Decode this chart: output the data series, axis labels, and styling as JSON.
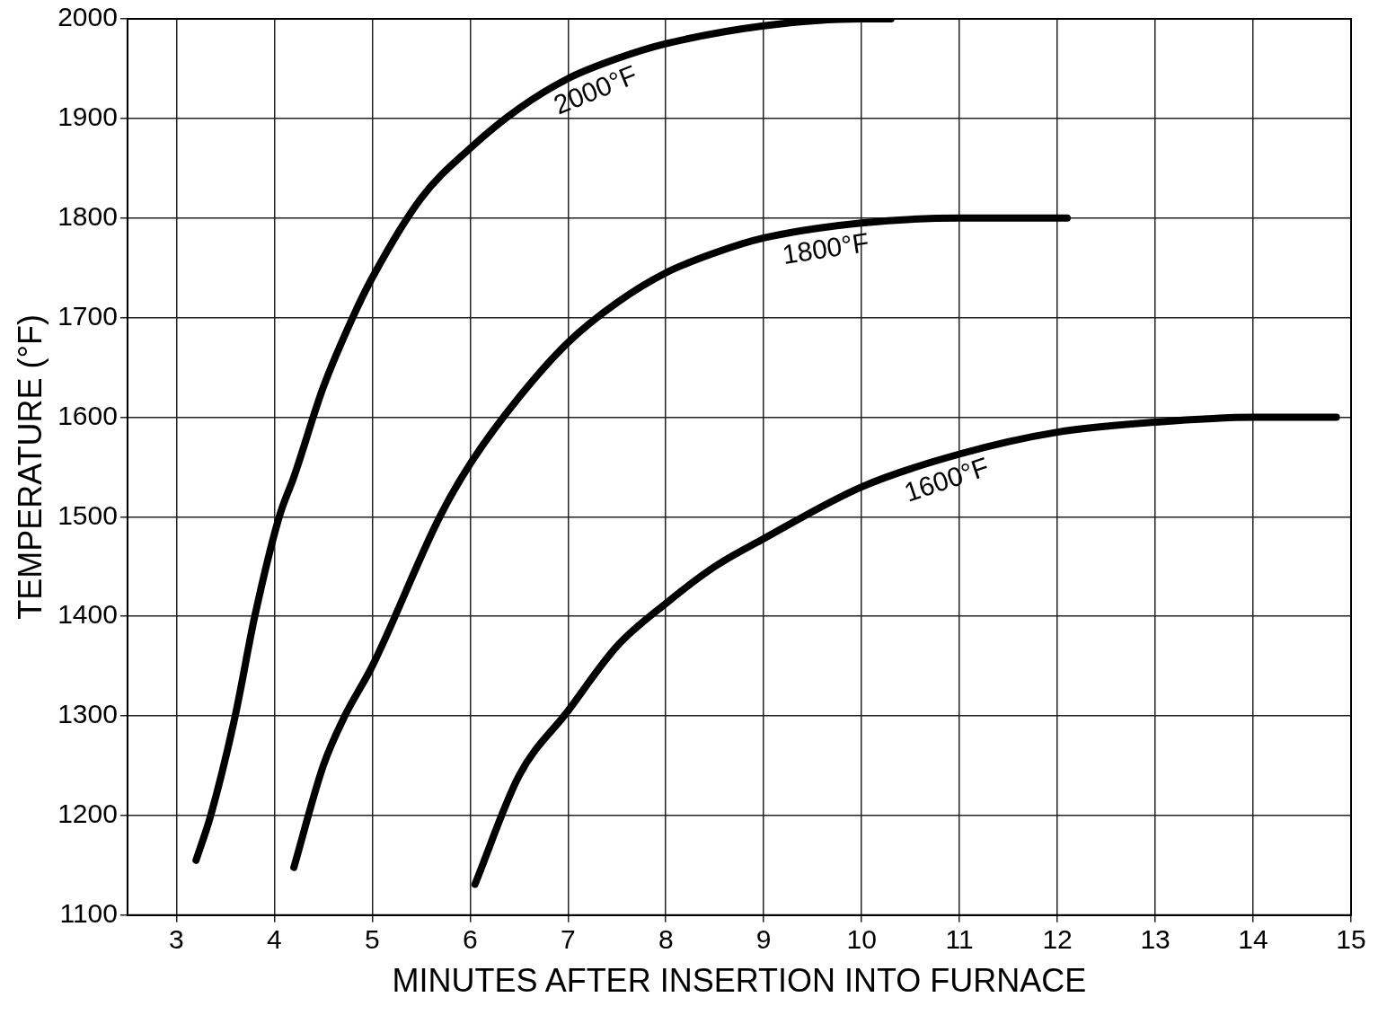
{
  "chart_data": {
    "type": "line",
    "xlabel": "MINUTES AFTER INSERTION INTO FURNACE",
    "ylabel": "TEMPERATURE (°F)",
    "xlim": [
      2.5,
      15
    ],
    "xticks": [
      3,
      4,
      5,
      6,
      7,
      8,
      9,
      10,
      11,
      12,
      13,
      14,
      15
    ],
    "ylim": [
      1100,
      2000
    ],
    "yticks": [
      1100,
      1200,
      1300,
      1400,
      1500,
      1600,
      1700,
      1800,
      1900,
      2000
    ],
    "grid": true,
    "marker": "none",
    "line_style": "solid",
    "series": [
      {
        "color": "#000000",
        "x": [
          3.2,
          3.35,
          3.6,
          3.8,
          4.05,
          4.2,
          4.5,
          4.8,
          5.0,
          5.5,
          6.0,
          6.5,
          7.0,
          7.5,
          8.0,
          9.0,
          10.0,
          10.3
        ],
        "values": [
          1155,
          1200,
          1300,
          1400,
          1500,
          1540,
          1630,
          1700,
          1740,
          1820,
          1870,
          1910,
          1940,
          1960,
          1975,
          1993,
          2000,
          2000
        ]
      },
      {
        "color": "#000000",
        "x": [
          4.2,
          4.5,
          4.72,
          5.0,
          5.69,
          6.0,
          6.5,
          7.0,
          7.5,
          8.0,
          8.5,
          9.0,
          10.0,
          11.0,
          12.1
        ],
        "values": [
          1148,
          1250,
          1300,
          1350,
          1500,
          1553,
          1620,
          1675,
          1715,
          1745,
          1765,
          1780,
          1795,
          1800,
          1800
        ]
      },
      {
        "color": "#000000",
        "x": [
          6.05,
          6.5,
          7.0,
          7.5,
          8.0,
          8.5,
          9.0,
          10.0,
          11.0,
          12.0,
          13.0,
          14.0,
          14.85
        ],
        "values": [
          1131,
          1240,
          1305,
          1370,
          1413,
          1450,
          1478,
          1530,
          1563,
          1585,
          1595,
          1600,
          1600
        ]
      }
    ],
    "annotations": [
      {
        "text": "2000°F",
        "x": 7.2,
        "y": 1948
      },
      {
        "text": "1800°F",
        "x": 9.6,
        "y": 1790
      },
      {
        "text": "1600°F",
        "x": 10.8,
        "y": 1557
      }
    ]
  }
}
